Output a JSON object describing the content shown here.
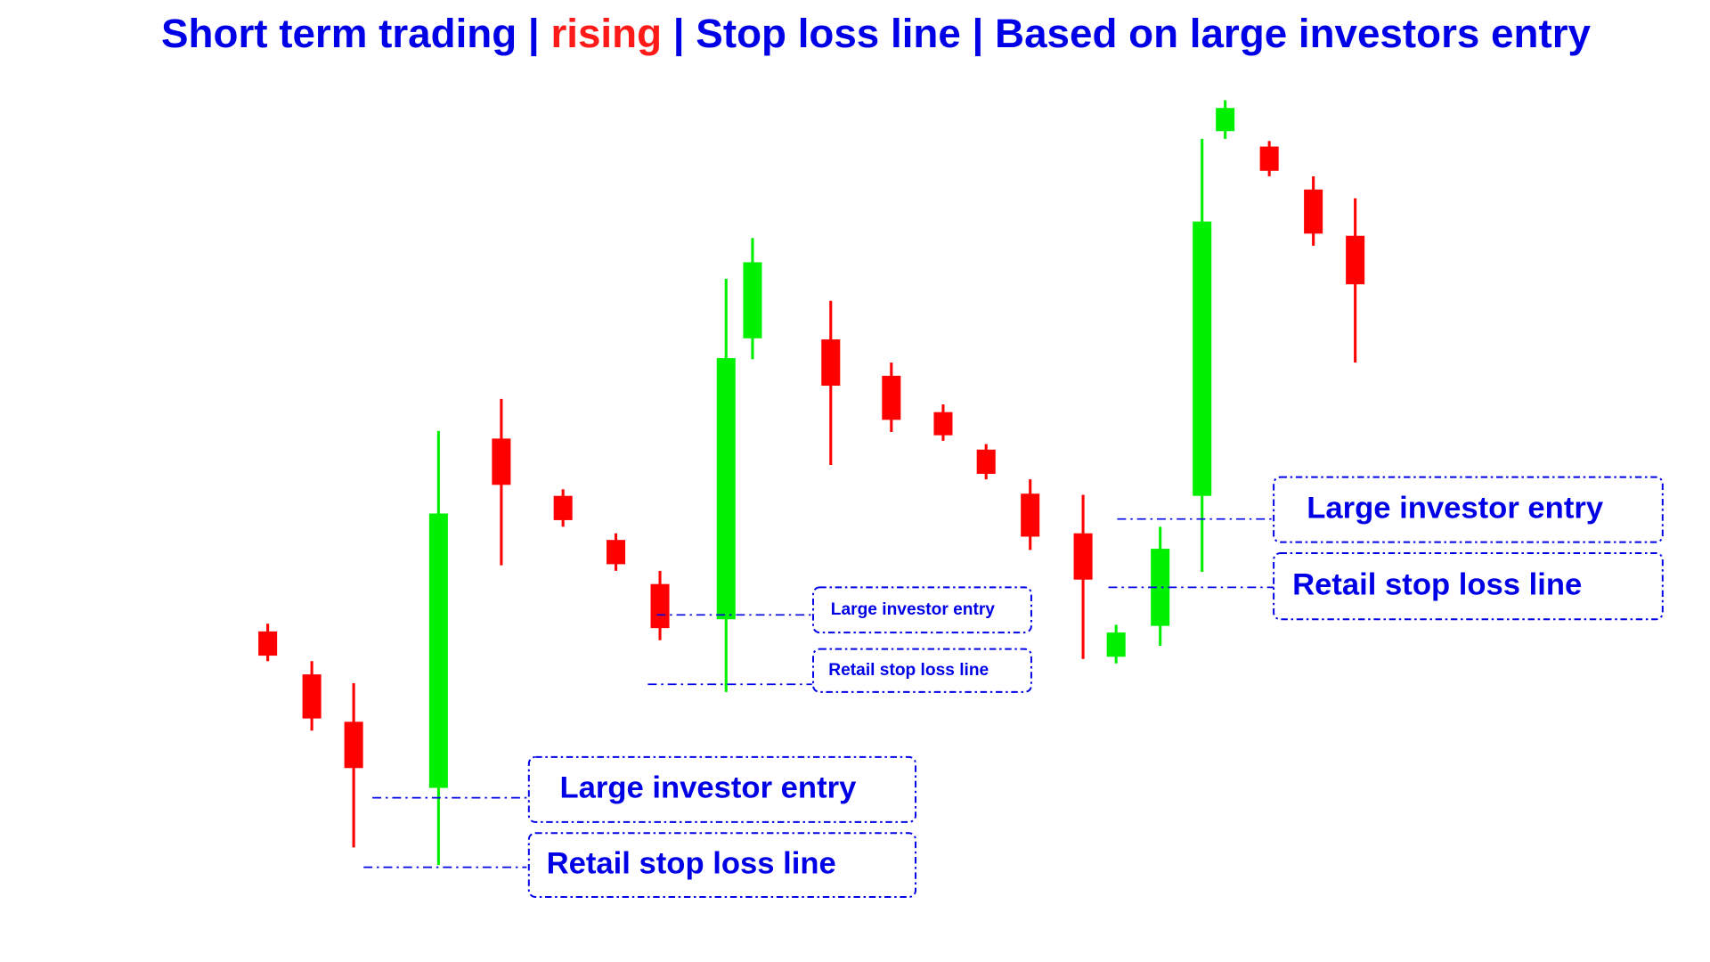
{
  "title": {
    "parts": [
      "Short term trading | ",
      "rising",
      " | Stop loss line | Based on large investors entry"
    ]
  },
  "labels": [
    {
      "entry": "Large investor entry",
      "stop": "Retail stop loss line"
    },
    {
      "entry": "Large investor entry",
      "stop": "Retail stop loss line"
    },
    {
      "entry": "Large investor entry",
      "stop": "Retail stop loss line"
    }
  ]
}
